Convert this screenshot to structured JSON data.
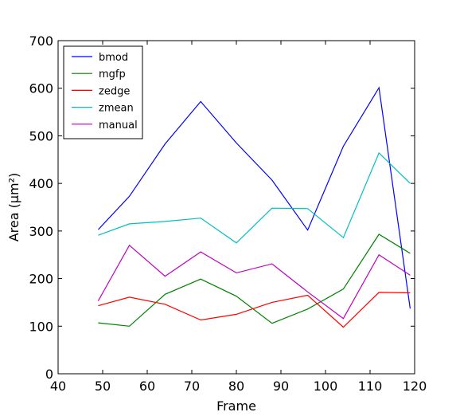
{
  "chart_data": {
    "type": "line",
    "title": "",
    "xlabel": "Frame",
    "ylabel": "Area (μm²)",
    "xlim": [
      40,
      120
    ],
    "ylim": [
      0,
      700
    ],
    "xticks": [
      40,
      50,
      60,
      70,
      80,
      90,
      100,
      110,
      120
    ],
    "yticks": [
      0,
      100,
      200,
      300,
      400,
      500,
      600,
      700
    ],
    "grid": false,
    "legend_position": "top-left",
    "x": [
      49,
      56,
      64,
      72,
      80,
      88,
      96,
      104,
      112,
      119
    ],
    "series": [
      {
        "name": "bmod",
        "color": "#0000ff",
        "values": [
          303,
          373,
          483,
          572,
          485,
          407,
          302,
          478,
          601,
          137
        ]
      },
      {
        "name": "mgfp",
        "color": "#008000",
        "values": [
          107,
          100,
          167,
          199,
          163,
          106,
          136,
          178,
          293,
          253
        ]
      },
      {
        "name": "zedge",
        "color": "#ff0000",
        "values": [
          143,
          161,
          146,
          113,
          125,
          150,
          165,
          98,
          171,
          170
        ]
      },
      {
        "name": "zmean",
        "color": "#00bfbf",
        "values": [
          291,
          315,
          320,
          327,
          275,
          348,
          347,
          286,
          464,
          400
        ]
      },
      {
        "name": "manual",
        "color": "#bf00bf",
        "values": [
          153,
          270,
          205,
          256,
          212,
          231,
          172,
          116,
          250,
          207
        ]
      }
    ]
  }
}
